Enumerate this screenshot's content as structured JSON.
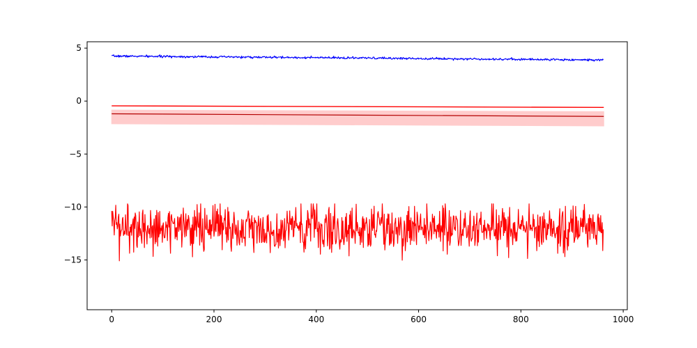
{
  "chart_data": {
    "type": "line",
    "title": "",
    "xlabel": "",
    "ylabel": "",
    "xlim": [
      -48,
      1008
    ],
    "ylim": [
      -19.7,
      5.6
    ],
    "x_ticks": [
      0,
      200,
      400,
      600,
      800,
      1000
    ],
    "y_ticks": [
      5,
      0,
      -5,
      -10,
      -15
    ],
    "x_tick_labels": [
      "0",
      "200",
      "400",
      "600",
      "800",
      "1000"
    ],
    "y_tick_labels": [
      "5",
      "0",
      "−5",
      "−10",
      "−15"
    ],
    "grid": false,
    "n_points": 962,
    "series": [
      {
        "kind": "noisy-line",
        "color": "#0000ff",
        "start": 4.25,
        "end": 3.88,
        "noise": 0.05,
        "seed": 7
      },
      {
        "kind": "line",
        "color": "#ff0000",
        "x": [
          0,
          962
        ],
        "y": [
          -0.45,
          -0.6
        ]
      },
      {
        "kind": "band",
        "color": "#ff0000",
        "fill": "#ffcccc",
        "x": [
          0,
          962
        ],
        "center": [
          -1.2,
          -1.45
        ],
        "lower": [
          -2.15,
          -2.35
        ],
        "upper": [
          -0.85,
          -1.0
        ]
      },
      {
        "kind": "noisy-line",
        "color": "#ff0000",
        "start": -12.0,
        "end": -12.0,
        "noise": 1.15,
        "min": -18.7,
        "max": -9.7,
        "seed": 42
      }
    ]
  }
}
